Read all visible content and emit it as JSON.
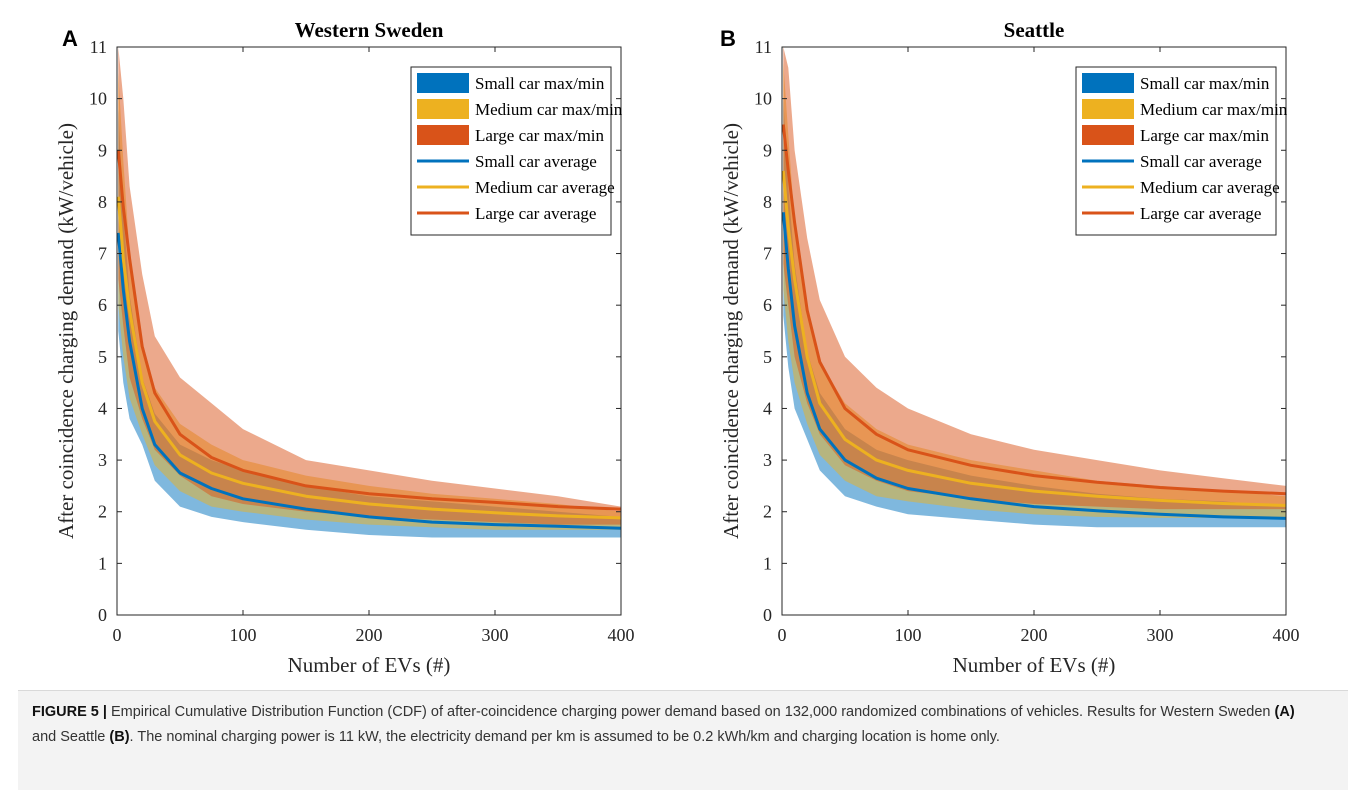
{
  "chart_data": [
    {
      "type": "line",
      "panel_label": "A",
      "title": "Western Sweden",
      "xlabel": "Number of EVs (#)",
      "ylabel": "After coincidence charging demand (kW/vehicle)",
      "xlim": [
        0,
        400
      ],
      "ylim": [
        0,
        11
      ],
      "xticks": [
        0,
        100,
        200,
        300,
        400
      ],
      "yticks": [
        0,
        1,
        2,
        3,
        4,
        5,
        6,
        7,
        8,
        9,
        10,
        11
      ],
      "legend_position": "top-right",
      "grid": false,
      "x": [
        1,
        5,
        10,
        20,
        30,
        50,
        75,
        100,
        150,
        200,
        250,
        300,
        350,
        400
      ],
      "series": [
        {
          "name": "Small car max/min",
          "kind": "band",
          "color": "#0072BD",
          "max": [
            9.8,
            7.8,
            6.2,
            4.6,
            3.9,
            3.3,
            3.0,
            2.8,
            2.5,
            2.3,
            2.2,
            2.1,
            2.0,
            1.9
          ],
          "min": [
            5.5,
            4.5,
            3.8,
            3.3,
            2.6,
            2.1,
            1.9,
            1.8,
            1.65,
            1.55,
            1.5,
            1.5,
            1.5,
            1.5
          ]
        },
        {
          "name": "Medium car max/min",
          "kind": "band",
          "color": "#EDB120",
          "max": [
            10.5,
            8.8,
            7.0,
            5.3,
            4.4,
            3.7,
            3.3,
            3.0,
            2.7,
            2.5,
            2.35,
            2.25,
            2.15,
            2.0
          ],
          "min": [
            6.0,
            5.0,
            4.2,
            3.5,
            2.9,
            2.4,
            2.1,
            2.0,
            1.85,
            1.75,
            1.7,
            1.65,
            1.65,
            1.65
          ]
        },
        {
          "name": "Large car max/min",
          "kind": "band",
          "color": "#D95319",
          "max": [
            11.0,
            10.0,
            8.3,
            6.6,
            5.4,
            4.6,
            4.1,
            3.6,
            3.0,
            2.8,
            2.6,
            2.45,
            2.3,
            2.1
          ],
          "min": [
            6.5,
            5.6,
            4.6,
            3.8,
            3.2,
            2.7,
            2.3,
            2.15,
            2.0,
            1.9,
            1.85,
            1.8,
            1.75,
            1.75
          ]
        },
        {
          "name": "Small car average",
          "kind": "line",
          "color": "#0072BD",
          "values": [
            7.4,
            6.3,
            5.3,
            4.0,
            3.3,
            2.75,
            2.45,
            2.25,
            2.05,
            1.9,
            1.8,
            1.75,
            1.72,
            1.68
          ]
        },
        {
          "name": "Medium car average",
          "kind": "line",
          "color": "#EDB120",
          "values": [
            8.1,
            6.9,
            5.9,
            4.5,
            3.75,
            3.1,
            2.75,
            2.55,
            2.3,
            2.15,
            2.05,
            1.98,
            1.92,
            1.88
          ]
        },
        {
          "name": "Large car average",
          "kind": "line",
          "color": "#D95319",
          "values": [
            9.0,
            7.9,
            6.9,
            5.2,
            4.3,
            3.5,
            3.05,
            2.8,
            2.5,
            2.35,
            2.25,
            2.18,
            2.1,
            2.05
          ]
        }
      ]
    },
    {
      "type": "line",
      "panel_label": "B",
      "title": "Seattle",
      "xlabel": "Number of EVs (#)",
      "ylabel": "After coincidence charging demand (kW/vehicle)",
      "xlim": [
        0,
        400
      ],
      "ylim": [
        0,
        11
      ],
      "xticks": [
        0,
        100,
        200,
        300,
        400
      ],
      "yticks": [
        0,
        1,
        2,
        3,
        4,
        5,
        6,
        7,
        8,
        9,
        10,
        11
      ],
      "legend_position": "top-right",
      "grid": false,
      "x": [
        1,
        5,
        10,
        20,
        30,
        50,
        75,
        100,
        150,
        200,
        250,
        300,
        350,
        400
      ],
      "series": [
        {
          "name": "Small car max/min",
          "kind": "band",
          "color": "#0072BD",
          "max": [
            10.0,
            8.3,
            6.8,
            5.1,
            4.3,
            3.6,
            3.2,
            3.0,
            2.7,
            2.5,
            2.35,
            2.25,
            2.2,
            2.1
          ],
          "min": [
            5.8,
            4.8,
            4.0,
            3.4,
            2.8,
            2.3,
            2.1,
            1.95,
            1.85,
            1.75,
            1.7,
            1.7,
            1.7,
            1.7
          ]
        },
        {
          "name": "Medium car max/min",
          "kind": "band",
          "color": "#EDB120",
          "max": [
            10.7,
            9.3,
            7.6,
            5.9,
            4.9,
            4.1,
            3.6,
            3.3,
            3.0,
            2.8,
            2.6,
            2.5,
            2.4,
            2.3
          ],
          "min": [
            6.3,
            5.3,
            4.5,
            3.7,
            3.1,
            2.6,
            2.3,
            2.2,
            2.05,
            1.95,
            1.9,
            1.88,
            1.88,
            1.88
          ]
        },
        {
          "name": "Large car max/min",
          "kind": "band",
          "color": "#D95319",
          "max": [
            11.0,
            10.6,
            9.0,
            7.3,
            6.1,
            5.0,
            4.4,
            4.0,
            3.5,
            3.2,
            3.0,
            2.8,
            2.65,
            2.5
          ],
          "min": [
            6.8,
            6.0,
            5.0,
            4.1,
            3.5,
            2.9,
            2.6,
            2.4,
            2.25,
            2.15,
            2.1,
            2.05,
            2.05,
            2.05
          ]
        },
        {
          "name": "Small car average",
          "kind": "line",
          "color": "#0072BD",
          "values": [
            7.8,
            6.7,
            5.6,
            4.3,
            3.6,
            3.0,
            2.65,
            2.45,
            2.25,
            2.1,
            2.02,
            1.95,
            1.9,
            1.87
          ]
        },
        {
          "name": "Medium car average",
          "kind": "line",
          "color": "#EDB120",
          "values": [
            8.6,
            7.5,
            6.5,
            5.0,
            4.1,
            3.4,
            3.0,
            2.8,
            2.55,
            2.4,
            2.3,
            2.22,
            2.16,
            2.12
          ]
        },
        {
          "name": "Large car average",
          "kind": "line",
          "color": "#D95319",
          "values": [
            9.5,
            8.6,
            7.6,
            5.9,
            4.9,
            4.0,
            3.5,
            3.2,
            2.9,
            2.7,
            2.57,
            2.47,
            2.4,
            2.35
          ]
        }
      ]
    }
  ],
  "caption": {
    "label": "FIGURE 5 |",
    "text_1": " Empirical Cumulative Distribution Function (CDF) of after-coincidence charging power demand based on 132,000 randomized combinations of vehicles. Results for Western Sweden ",
    "ref_a": "(A)",
    "text_2": " and Seattle ",
    "ref_b": "(B)",
    "text_3": ". The nominal charging power is 11 kW, the electricity demand per km is assumed to be 0.2 kWh/km and charging location is home only."
  }
}
